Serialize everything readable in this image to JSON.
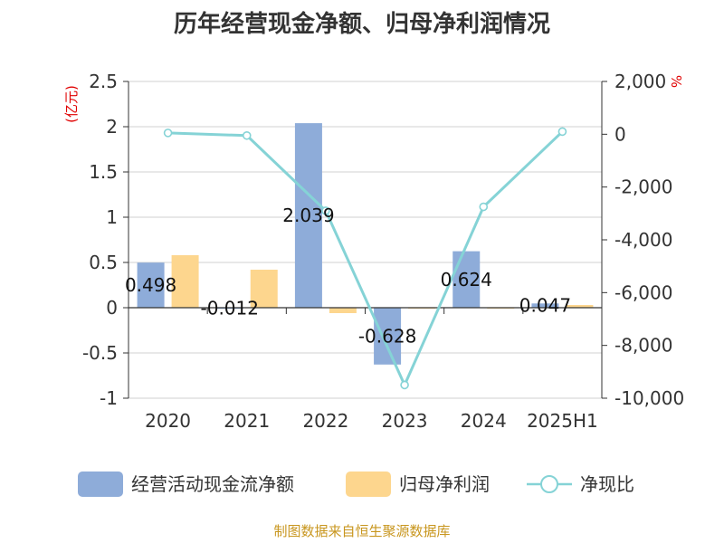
{
  "chart_data": {
    "type": "bar",
    "title": "历年经营现金净额、归母净利润情况",
    "categories": [
      "2020",
      "2021",
      "2022",
      "2023",
      "2024",
      "2025H1"
    ],
    "left_axis": {
      "unit": "(亿元)",
      "ylim": [
        -1,
        2.5
      ],
      "ticks": [
        "2.5",
        "2",
        "1.5",
        "1",
        "0.5",
        "0",
        "-0.5",
        "-1"
      ]
    },
    "right_axis": {
      "unit": "%",
      "ylim": [
        -10000,
        2000
      ],
      "ticks": [
        "2,000",
        "0",
        "-2,000",
        "-4,000",
        "-6,000",
        "-8,000",
        "-10,000"
      ]
    },
    "series": [
      {
        "name": "经营活动现金流净额",
        "kind": "bar",
        "axis": "left",
        "color": "#8eacd9",
        "values": [
          0.498,
          -0.012,
          2.039,
          -0.628,
          0.624,
          0.047
        ],
        "labels": [
          "0.498",
          "-0.012",
          "2.039",
          "-0.628",
          "0.624",
          "0.047"
        ]
      },
      {
        "name": "归母净利润",
        "kind": "bar",
        "axis": "left",
        "color": "#fdd68e",
        "values": [
          0.58,
          0.42,
          -0.06,
          -0.01,
          -0.01,
          0.03
        ]
      },
      {
        "name": "净现比",
        "kind": "line",
        "axis": "right",
        "color": "#85d3d6",
        "values": [
          50,
          -50,
          -2900,
          -9500,
          -2750,
          100
        ]
      }
    ],
    "grid": true,
    "legend": "bottom"
  },
  "source": "制图数据来自恒生聚源数据库"
}
